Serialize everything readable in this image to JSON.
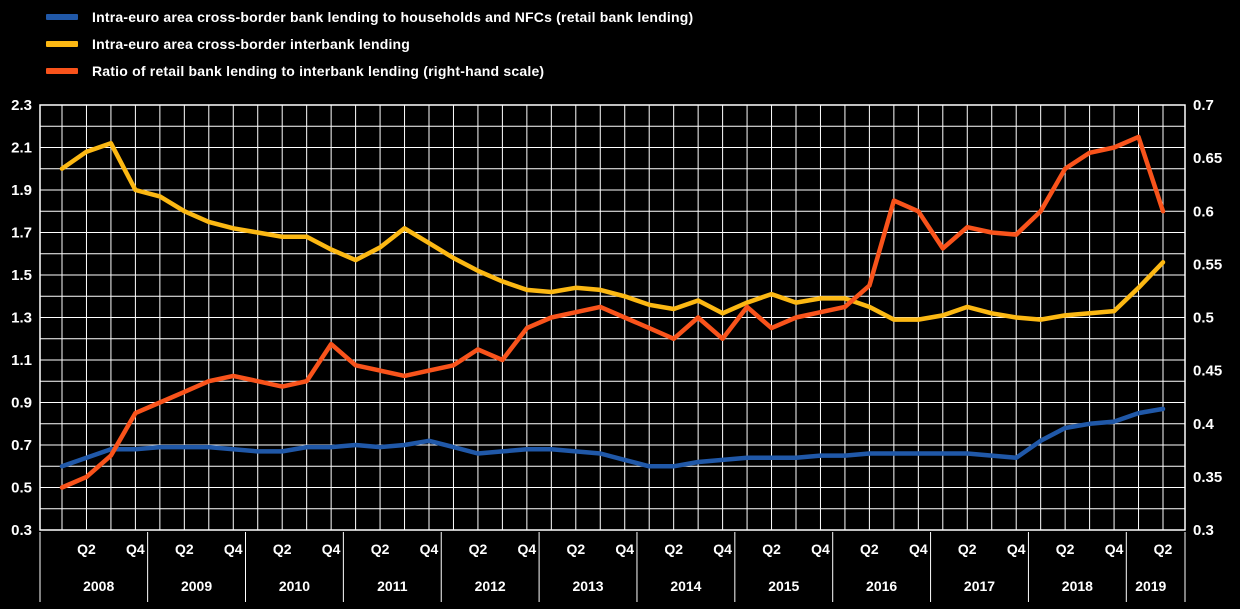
{
  "chart_data": {
    "type": "line",
    "title": "",
    "background": "#000000",
    "grid": {
      "color": "#ffffff",
      "horizontal": true,
      "vertical": true
    },
    "legend_position": "top-left",
    "legend": [
      {
        "label": "Intra-euro area cross-border bank lending to households and NFCs (retail bank lending)",
        "color": "#2058a8"
      },
      {
        "label": "Intra-euro area cross-border interbank lending",
        "color": "#fcb813"
      },
      {
        "label": "Ratio of retail bank lending to interbank lending (right-hand scale)",
        "color": "#f9531b"
      }
    ],
    "frequency": "quarterly",
    "x": [
      "2008-Q1",
      "2008-Q2",
      "2008-Q3",
      "2008-Q4",
      "2009-Q1",
      "2009-Q2",
      "2009-Q3",
      "2009-Q4",
      "2010-Q1",
      "2010-Q2",
      "2010-Q3",
      "2010-Q4",
      "2011-Q1",
      "2011-Q2",
      "2011-Q3",
      "2011-Q4",
      "2012-Q1",
      "2012-Q2",
      "2012-Q3",
      "2012-Q4",
      "2013-Q1",
      "2013-Q2",
      "2013-Q3",
      "2013-Q4",
      "2014-Q1",
      "2014-Q2",
      "2014-Q3",
      "2014-Q4",
      "2015-Q1",
      "2015-Q2",
      "2015-Q3",
      "2015-Q4",
      "2016-Q1",
      "2016-Q2",
      "2016-Q3",
      "2016-Q4",
      "2017-Q1",
      "2017-Q2",
      "2017-Q3",
      "2017-Q4",
      "2018-Q1",
      "2018-Q2",
      "2018-Q3",
      "2018-Q4",
      "2019-Q1",
      "2019-Q2"
    ],
    "years": [
      "2008",
      "2009",
      "2010",
      "2011",
      "2012",
      "2013",
      "2014",
      "2015",
      "2016",
      "2017",
      "2018",
      "2019"
    ],
    "x_ticks": [
      {
        "i": 1,
        "label": "Q2"
      },
      {
        "i": 3,
        "label": "Q4"
      },
      {
        "i": 5,
        "label": "Q2"
      },
      {
        "i": 7,
        "label": "Q4"
      },
      {
        "i": 9,
        "label": "Q2"
      },
      {
        "i": 11,
        "label": "Q4"
      },
      {
        "i": 13,
        "label": "Q2"
      },
      {
        "i": 15,
        "label": "Q4"
      },
      {
        "i": 17,
        "label": "Q2"
      },
      {
        "i": 19,
        "label": "Q4"
      },
      {
        "i": 21,
        "label": "Q2"
      },
      {
        "i": 23,
        "label": "Q4"
      },
      {
        "i": 25,
        "label": "Q2"
      },
      {
        "i": 27,
        "label": "Q4"
      },
      {
        "i": 29,
        "label": "Q2"
      },
      {
        "i": 31,
        "label": "Q4"
      },
      {
        "i": 33,
        "label": "Q2"
      },
      {
        "i": 35,
        "label": "Q4"
      },
      {
        "i": 37,
        "label": "Q2"
      },
      {
        "i": 39,
        "label": "Q4"
      },
      {
        "i": 41,
        "label": "Q2"
      },
      {
        "i": 43,
        "label": "Q4"
      },
      {
        "i": 45,
        "label": "Q2"
      }
    ],
    "left_axis": {
      "min": 0.3,
      "max": 2.3,
      "tick_step": 0.2,
      "labels": [
        "2.3",
        "2.1",
        "1.9",
        "1.7",
        "1.5",
        "1.3",
        "1.1",
        "0.9",
        "0.7",
        "0.5",
        "0.3"
      ]
    },
    "right_axis": {
      "min": 0.3,
      "max": 0.7,
      "tick_step": 0.05,
      "labels": [
        "0.7",
        "0.65",
        "0.6",
        "0.55",
        "0.5",
        "0.45",
        "0.4",
        "0.35",
        "0.3"
      ]
    },
    "series": [
      {
        "name": "Intra-euro area cross-border bank lending to households and NFCs (retail bank lending)",
        "color": "#2058a8",
        "axis": "left",
        "values": [
          0.6,
          0.64,
          0.68,
          0.68,
          0.69,
          0.69,
          0.69,
          0.68,
          0.67,
          0.67,
          0.69,
          0.69,
          0.7,
          0.69,
          0.7,
          0.72,
          0.69,
          0.66,
          0.67,
          0.68,
          0.68,
          0.67,
          0.66,
          0.63,
          0.6,
          0.6,
          0.62,
          0.63,
          0.64,
          0.64,
          0.64,
          0.65,
          0.65,
          0.66,
          0.66,
          0.66,
          0.66,
          0.66,
          0.65,
          0.64,
          0.72,
          0.78,
          0.8,
          0.81,
          0.85,
          0.87
        ]
      },
      {
        "name": "Intra-euro area cross-border interbank lending",
        "color": "#fcb813",
        "axis": "left",
        "values": [
          2.0,
          2.08,
          2.12,
          1.9,
          1.87,
          1.8,
          1.75,
          1.72,
          1.7,
          1.68,
          1.68,
          1.62,
          1.57,
          1.63,
          1.72,
          1.65,
          1.58,
          1.52,
          1.47,
          1.43,
          1.42,
          1.44,
          1.43,
          1.4,
          1.36,
          1.34,
          1.38,
          1.32,
          1.37,
          1.41,
          1.37,
          1.39,
          1.39,
          1.35,
          1.29,
          1.29,
          1.31,
          1.35,
          1.32,
          1.3,
          1.29,
          1.31,
          1.32,
          1.33,
          1.44,
          1.56
        ]
      },
      {
        "name": "Ratio of retail bank lending to interbank lending (right-hand scale)",
        "color": "#f9531b",
        "axis": "right",
        "values": [
          0.34,
          0.35,
          0.37,
          0.41,
          0.42,
          0.43,
          0.44,
          0.445,
          0.44,
          0.435,
          0.44,
          0.475,
          0.455,
          0.45,
          0.445,
          0.45,
          0.455,
          0.47,
          0.46,
          0.49,
          0.5,
          0.505,
          0.51,
          0.5,
          0.49,
          0.48,
          0.5,
          0.48,
          0.51,
          0.49,
          0.5,
          0.505,
          0.51,
          0.53,
          0.61,
          0.6,
          0.565,
          0.585,
          0.58,
          0.578,
          0.6,
          0.64,
          0.655,
          0.66,
          0.67,
          0.6
        ]
      }
    ]
  }
}
